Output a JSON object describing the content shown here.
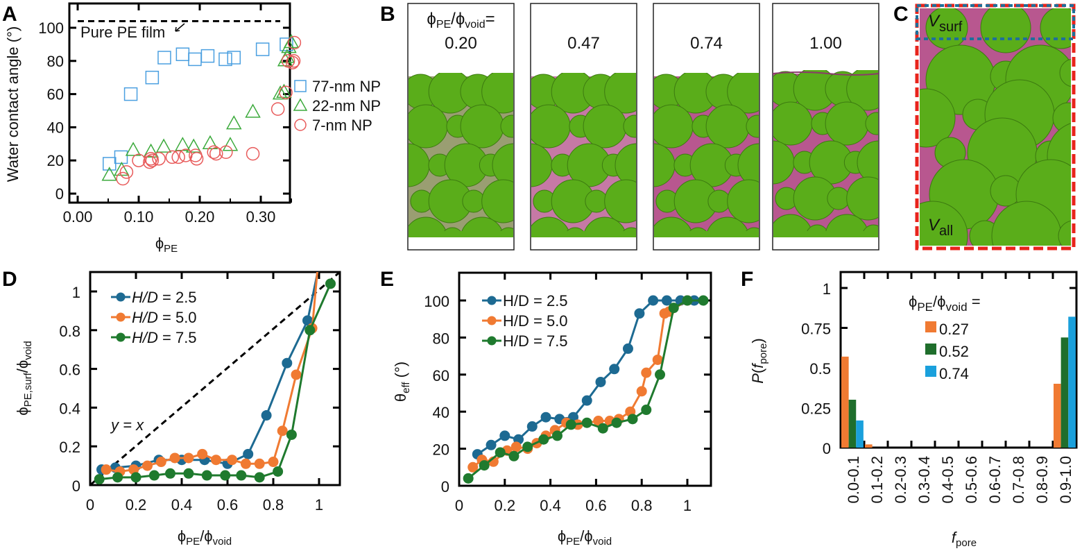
{
  "figure": {
    "panels": [
      "A",
      "B",
      "C",
      "D",
      "E",
      "F"
    ]
  },
  "chart_data": [
    {
      "panel": "A",
      "type": "scatter",
      "xlabel": "ϕ",
      "xlabel_sub": "PE",
      "ylabel": "Water contact angle (°)",
      "xlim": [
        -0.01,
        0.37
      ],
      "ylim": [
        -4,
        115
      ],
      "xticks": [
        "0.00",
        "0.10",
        "0.20",
        "0.30"
      ],
      "xtick_values": [
        0.0,
        0.1,
        0.2,
        0.3
      ],
      "yticks": [
        "0",
        "20",
        "40",
        "60",
        "80",
        "100"
      ],
      "ytick_values": [
        0,
        20,
        40,
        60,
        80,
        100
      ],
      "reference_line": {
        "y": 104,
        "label": "Pure PE film",
        "style": "dashed"
      },
      "legend_position": "right-outside",
      "series": [
        {
          "name": "77-nm NP",
          "marker": "square",
          "color": "#4a9fe0",
          "x": [
            0.052,
            0.071,
            0.087,
            0.122,
            0.142,
            0.172,
            0.192,
            0.213,
            0.242,
            0.256,
            0.303,
            0.342
          ],
          "y": [
            18,
            22,
            60,
            70,
            82,
            84,
            81,
            83,
            81,
            82,
            87,
            90
          ]
        },
        {
          "name": "22-nm NP",
          "marker": "triangle",
          "color": "#3caa3c",
          "x": [
            0.052,
            0.072,
            0.091,
            0.12,
            0.141,
            0.172,
            0.19,
            0.217,
            0.25,
            0.256,
            0.287,
            0.332,
            0.338,
            0.34,
            0.343,
            0.346,
            0.35
          ],
          "y": [
            11,
            14,
            26,
            25,
            28,
            29,
            28,
            30,
            29,
            42,
            49,
            60,
            61,
            80,
            82,
            88,
            91
          ]
        },
        {
          "name": "7-nm NP",
          "marker": "circle",
          "color": "#e85a5a",
          "x": [
            0.074,
            0.08,
            0.1,
            0.118,
            0.12,
            0.122,
            0.133,
            0.155,
            0.165,
            0.177,
            0.193,
            0.195,
            0.223,
            0.227,
            0.243,
            0.287,
            0.328,
            0.341,
            0.345,
            0.352,
            0.354,
            0.355
          ],
          "y": [
            9,
            13,
            20,
            19,
            21,
            20,
            21,
            22,
            22,
            23,
            23,
            21,
            25,
            24,
            25,
            24,
            51,
            61,
            80,
            79,
            80,
            91
          ]
        }
      ]
    },
    {
      "panel": "B",
      "type": "image",
      "label_prefix": "ϕ",
      "label_sub1": "PE",
      "label_mid": "/ϕ",
      "label_sub2": "void",
      "label_suffix": "=",
      "snapshots": [
        "0.20",
        "0.47",
        "0.74",
        "1.00"
      ]
    },
    {
      "panel": "C",
      "type": "image",
      "labels": [
        {
          "main": "V",
          "sub": "surf",
          "box_color": "#1f6f9a"
        },
        {
          "main": "V",
          "sub": "all",
          "box_color": "#e8241c"
        }
      ]
    },
    {
      "panel": "D",
      "type": "line",
      "xlabel": "ϕPE/ϕvoid",
      "ylabel": "ϕPE,surf/ϕvoid",
      "xlim": [
        0,
        1.1
      ],
      "ylim": [
        0,
        1.1
      ],
      "xticks": [
        "0",
        "0.2",
        "0.4",
        "0.6",
        "0.8",
        "1"
      ],
      "xtick_values": [
        0,
        0.2,
        0.4,
        0.6,
        0.8,
        1.0
      ],
      "yticks": [
        "0",
        "0.2",
        "0.4",
        "0.6",
        "0.8",
        "1"
      ],
      "ytick_values": [
        0,
        0.2,
        0.4,
        0.6,
        0.8,
        1.0
      ],
      "annotation": "y = x",
      "reference_line": {
        "type": "y=x",
        "style": "dashed"
      },
      "legend_position": "top-left",
      "series": [
        {
          "name": "H/D = 2.5",
          "color": "#1d6a92",
          "x": [
            0.05,
            0.11,
            0.2,
            0.3,
            0.4,
            0.5,
            0.6,
            0.69,
            0.77,
            0.86,
            0.95,
            1.02
          ],
          "y": [
            0.08,
            0.09,
            0.1,
            0.13,
            0.13,
            0.13,
            0.11,
            0.16,
            0.36,
            0.63,
            0.85,
            1.25
          ]
        },
        {
          "name": "H/D = 5.0",
          "color": "#f07a32",
          "x": [
            0.07,
            0.13,
            0.19,
            0.25,
            0.31,
            0.37,
            0.43,
            0.49,
            0.55,
            0.62,
            0.68,
            0.74,
            0.8,
            0.84,
            0.9,
            0.97,
            1.0
          ],
          "y": [
            0.08,
            0.07,
            0.08,
            0.1,
            0.12,
            0.14,
            0.14,
            0.16,
            0.13,
            0.13,
            0.11,
            0.11,
            0.12,
            0.28,
            0.57,
            0.81,
            1.2
          ]
        },
        {
          "name": "H/D = 7.5",
          "color": "#1f7a2e",
          "x": [
            0.04,
            0.12,
            0.2,
            0.28,
            0.35,
            0.43,
            0.51,
            0.59,
            0.66,
            0.74,
            0.82,
            0.88,
            0.96,
            1.05
          ],
          "y": [
            0.03,
            0.04,
            0.04,
            0.05,
            0.06,
            0.06,
            0.05,
            0.05,
            0.05,
            0.04,
            0.07,
            0.26,
            0.8,
            1.04
          ]
        }
      ]
    },
    {
      "panel": "E",
      "type": "line",
      "xlabel": "ϕPE/ϕvoid",
      "ylabel": "θeff (°)",
      "xlim": [
        0,
        1.1
      ],
      "ylim": [
        0,
        115
      ],
      "xticks": [
        "0",
        "0.2",
        "0.4",
        "0.6",
        "0.8",
        "1"
      ],
      "xtick_values": [
        0,
        0.2,
        0.4,
        0.6,
        0.8,
        1.0
      ],
      "yticks": [
        "0",
        "20",
        "40",
        "60",
        "80",
        "100"
      ],
      "ytick_values": [
        0,
        20,
        40,
        60,
        80,
        100
      ],
      "legend_position": "top-left",
      "series": [
        {
          "name": "H/D = 2.5",
          "color": "#1d6a92",
          "x": [
            0.08,
            0.14,
            0.2,
            0.26,
            0.32,
            0.38,
            0.44,
            0.5,
            0.56,
            0.62,
            0.68,
            0.74,
            0.79,
            0.85,
            0.91,
            0.97,
            1.03
          ],
          "y": [
            17,
            22,
            27,
            25,
            32,
            37,
            36,
            37,
            46,
            56,
            63,
            74,
            93,
            100,
            100,
            100,
            100
          ]
        },
        {
          "name": "H/D = 5.0",
          "color": "#f07a32",
          "x": [
            0.06,
            0.1,
            0.15,
            0.21,
            0.25,
            0.3,
            0.34,
            0.38,
            0.42,
            0.47,
            0.52,
            0.61,
            0.66,
            0.7,
            0.75,
            0.8,
            0.82,
            0.87,
            0.9,
            0.92,
            1.0
          ],
          "y": [
            10,
            14,
            13,
            19,
            21,
            20,
            23,
            27,
            30,
            34,
            33,
            35,
            35,
            36,
            40,
            51,
            61,
            68,
            93,
            94,
            100
          ]
        },
        {
          "name": "H/D = 7.5",
          "color": "#1f7a2e",
          "x": [
            0.04,
            0.11,
            0.18,
            0.24,
            0.3,
            0.37,
            0.43,
            0.49,
            0.56,
            0.63,
            0.69,
            0.76,
            0.82,
            0.88,
            0.94,
            1.0,
            1.07
          ],
          "y": [
            4,
            11,
            18,
            16,
            21,
            25,
            27,
            33,
            34,
            31,
            34,
            36,
            41,
            60,
            96,
            100,
            100
          ]
        }
      ]
    },
    {
      "panel": "F",
      "type": "bar",
      "xlabel": "f",
      "xlabel_sub": "pore",
      "ylabel": "P(f",
      "ylabel_sub": "pore",
      "ylabel_suffix": ")",
      "ylim": [
        0,
        1.07
      ],
      "yticks": [
        "0",
        "0.25",
        "0.5",
        "0.75",
        "1"
      ],
      "ytick_values": [
        0,
        0.25,
        0.5,
        0.75,
        1.0
      ],
      "legend_title": "ϕPE/ϕvoid =",
      "legend_position": "top-center",
      "categories": [
        "0.0-0.1",
        "0.1-0.2",
        "0.2-0.3",
        "0.3-0.4",
        "0.4-0.5",
        "0.5-0.6",
        "0.6-0.7",
        "0.7-0.8",
        "0.8-0.9",
        "0.9-1.0"
      ],
      "series": [
        {
          "name": "0.27",
          "color": "#f07a32",
          "values": [
            0.57,
            0.02,
            0,
            0,
            0,
            0,
            0,
            0,
            0,
            0.4
          ]
        },
        {
          "name": "0.52",
          "color": "#1f6e2c",
          "values": [
            0.3,
            0,
            0,
            0,
            0,
            0,
            0,
            0,
            0,
            0.69
          ]
        },
        {
          "name": "0.74",
          "color": "#1aa0dc",
          "values": [
            0.17,
            0,
            0,
            0,
            0,
            0,
            0,
            0,
            0,
            0.82
          ]
        }
      ]
    }
  ],
  "colors": {
    "np_green": "#5aad1a",
    "pe_magenta": "#b8578f"
  }
}
